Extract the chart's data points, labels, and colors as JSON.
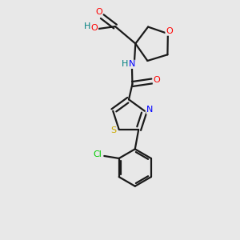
{
  "bg_color": "#e8e8e8",
  "bond_color": "#1a1a1a",
  "O_color": "#ff0000",
  "N_color": "#0000ff",
  "S_color": "#ccaa00",
  "Cl_color": "#00cc00",
  "H_color": "#008080",
  "figsize": [
    3.0,
    3.0
  ],
  "dpi": 100,
  "xlim": [
    0,
    10
  ],
  "ylim": [
    0,
    10
  ]
}
